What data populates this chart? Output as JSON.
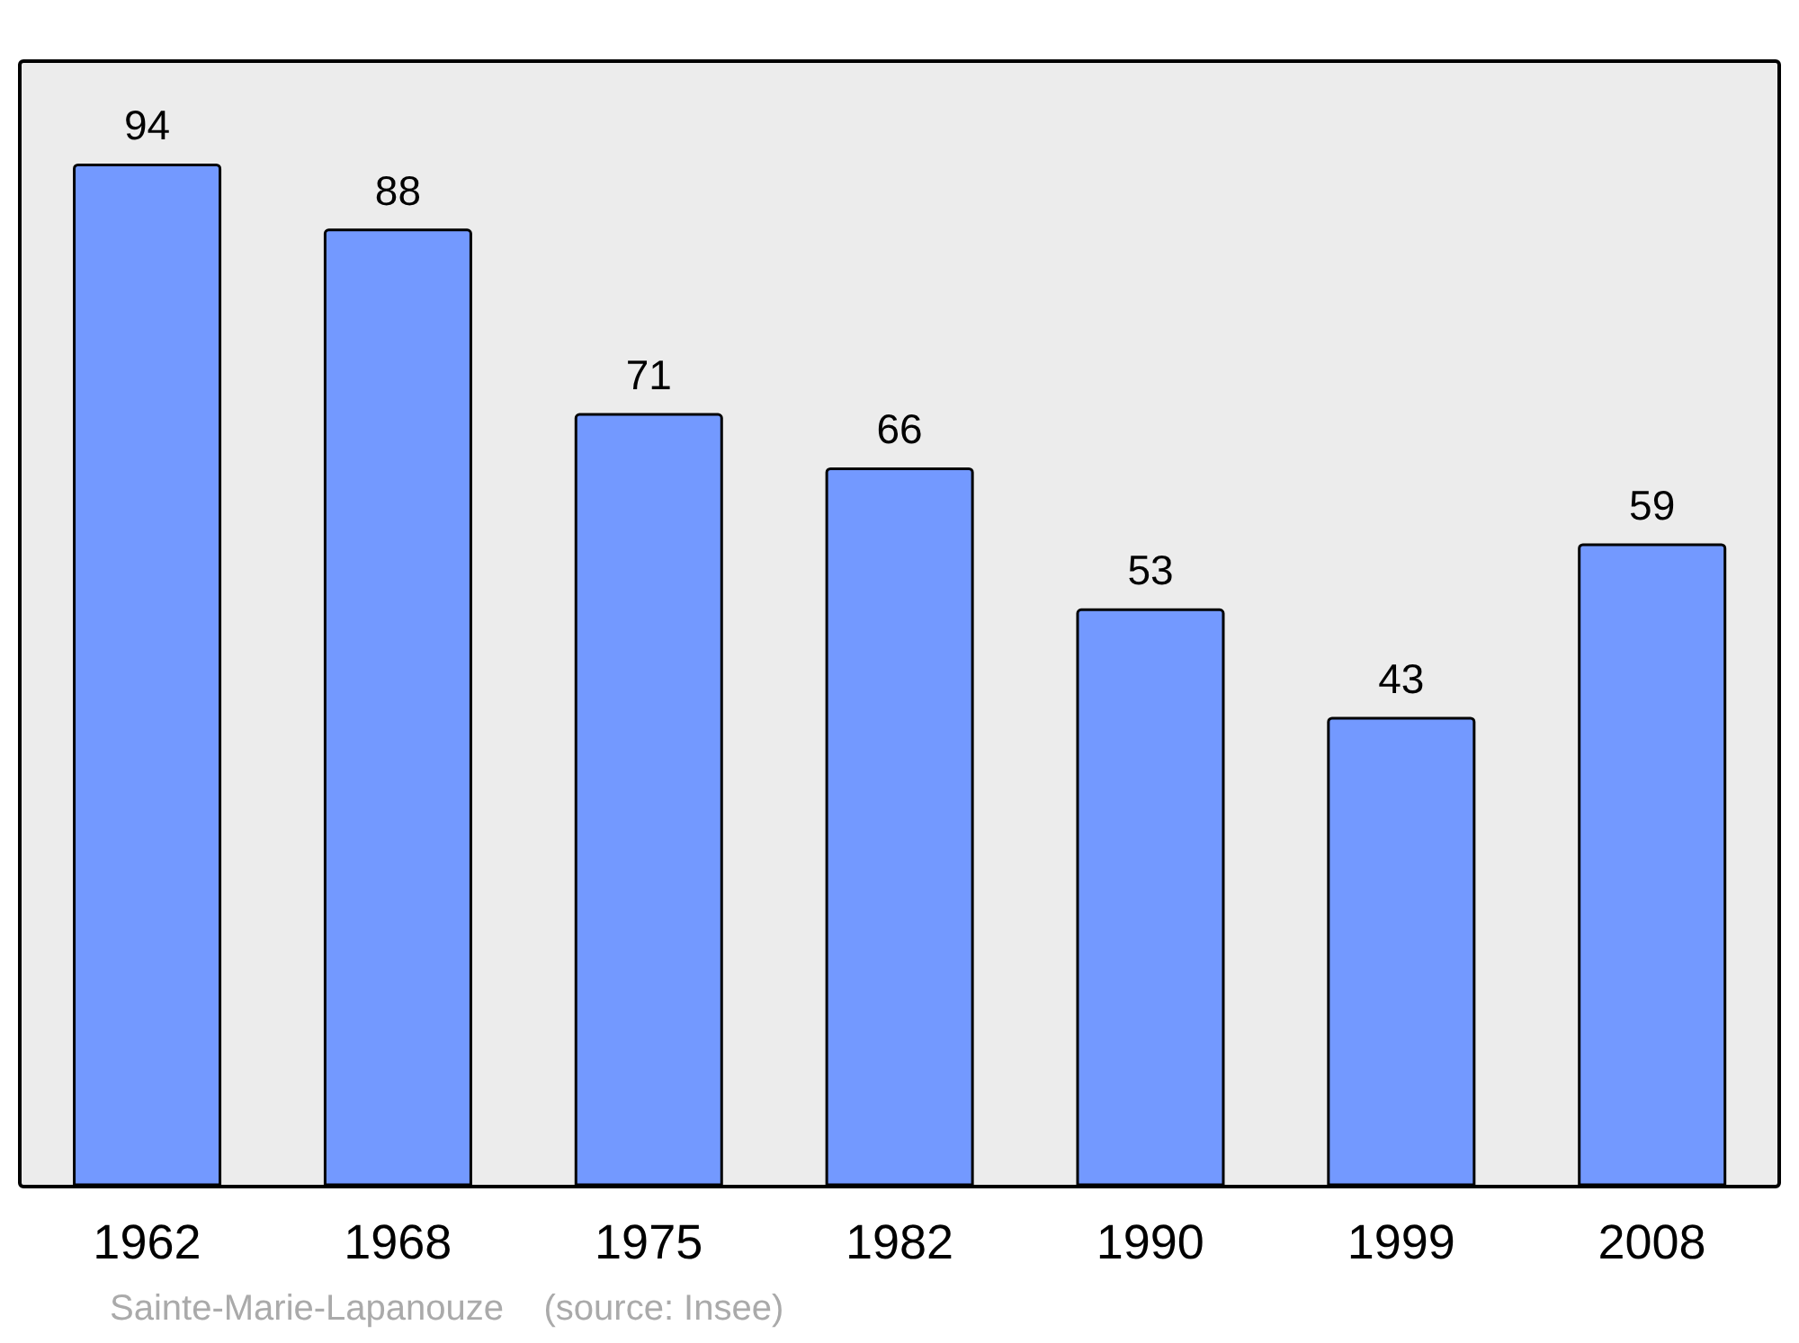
{
  "chart_data": {
    "type": "bar",
    "categories": [
      "1962",
      "1968",
      "1975",
      "1982",
      "1990",
      "1999",
      "2008"
    ],
    "values": [
      94,
      88,
      71,
      66,
      53,
      43,
      59
    ],
    "color": "#7399ff",
    "data_labels": true,
    "tick_labels": "x",
    "annotations": [
      "Sainte-Marie-Lapanouze    (source: Insee)"
    ]
  }
}
